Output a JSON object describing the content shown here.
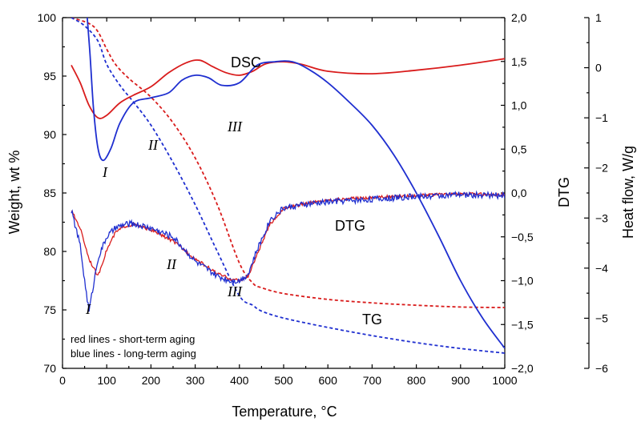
{
  "chart_data": {
    "type": "line",
    "title": "",
    "xlabel": "Temperature, °C",
    "xlim": [
      0,
      1000
    ],
    "x_ticks": [
      "0",
      "100",
      "200",
      "300",
      "400",
      "500",
      "600",
      "700",
      "800",
      "900",
      "1000"
    ],
    "axes": {
      "left": {
        "label": "Weight, wt %",
        "lim": [
          70,
          100
        ],
        "ticks": [
          "70",
          "75",
          "80",
          "85",
          "90",
          "95",
          "100"
        ]
      },
      "right": {
        "label": "DTG",
        "lim": [
          -2.0,
          2.0
        ],
        "ticks": [
          "−2,0",
          "−1,5",
          "−1,0",
          "−0,5",
          "0,0",
          "0,5",
          "1,0",
          "1,5",
          "2,0"
        ]
      },
      "far_right": {
        "label": "Heat flow, W/g",
        "lim": [
          -6,
          1
        ],
        "ticks": [
          "−6",
          "−5",
          "−4",
          "−3",
          "−2",
          "−1",
          "0",
          "1"
        ]
      }
    },
    "grid": false,
    "colors": {
      "short_term": "#d91c1c",
      "long_term": "#1f2fd0"
    },
    "curve_labels": [
      "DSC",
      "DTG",
      "TG"
    ],
    "region_labels": [
      "I",
      "II",
      "III",
      "I",
      "II",
      "III"
    ],
    "notes": [
      "red lines - short-term aging",
      "blue lines - long-term aging"
    ],
    "series": [
      {
        "group": "TG",
        "aging": "short_term",
        "axis": "left",
        "style": "dashed",
        "x": [
          20,
          60,
          80,
          100,
          120,
          150,
          200,
          250,
          300,
          350,
          400,
          430,
          450,
          500,
          600,
          700,
          800,
          900,
          1000
        ],
        "y": [
          100,
          99.5,
          98.8,
          97.3,
          96.0,
          94.8,
          93.2,
          91.0,
          88.0,
          84.0,
          79.0,
          77.3,
          76.9,
          76.4,
          75.9,
          75.6,
          75.4,
          75.25,
          75.2
        ]
      },
      {
        "group": "TG",
        "aging": "long_term",
        "axis": "left",
        "style": "dashed",
        "x": [
          20,
          50,
          80,
          100,
          130,
          160,
          200,
          250,
          300,
          350,
          400,
          430,
          450,
          500,
          600,
          700,
          800,
          900,
          1000
        ],
        "y": [
          100,
          99.3,
          98.0,
          96.0,
          94.2,
          92.8,
          90.8,
          87.6,
          84.0,
          80.0,
          76.2,
          75.4,
          74.9,
          74.3,
          73.5,
          72.8,
          72.2,
          71.7,
          71.3
        ]
      },
      {
        "group": "DSC",
        "aging": "short_term",
        "axis": "far_right",
        "style": "solid",
        "x": [
          20,
          40,
          60,
          80,
          100,
          130,
          160,
          200,
          240,
          280,
          310,
          340,
          370,
          400,
          430,
          460,
          500,
          540,
          600,
          700,
          800,
          900,
          1000
        ],
        "y": [
          0.05,
          -0.3,
          -0.75,
          -1.0,
          -0.95,
          -0.7,
          -0.55,
          -0.38,
          -0.1,
          0.1,
          0.15,
          0.02,
          -0.1,
          -0.15,
          -0.07,
          0.08,
          0.12,
          0.07,
          -0.07,
          -0.12,
          -0.05,
          0.05,
          0.18
        ]
      },
      {
        "group": "DSC",
        "aging": "long_term",
        "axis": "far_right",
        "style": "solid",
        "x": [
          55,
          62,
          70,
          80,
          92,
          110,
          130,
          160,
          200,
          240,
          270,
          300,
          330,
          360,
          400,
          440,
          480,
          520,
          560,
          600,
          650,
          700,
          750,
          800,
          850,
          900,
          950,
          1000
        ],
        "y": [
          1.1,
          0.3,
          -0.8,
          -1.6,
          -1.85,
          -1.6,
          -1.1,
          -0.7,
          -0.6,
          -0.5,
          -0.25,
          -0.15,
          -0.2,
          -0.35,
          -0.3,
          0.05,
          0.12,
          0.12,
          -0.05,
          -0.3,
          -0.7,
          -1.15,
          -1.75,
          -2.5,
          -3.35,
          -4.25,
          -5.0,
          -5.6
        ]
      },
      {
        "group": "DTG",
        "aging": "short_term",
        "axis": "right",
        "style": "solid",
        "x": [
          20,
          40,
          60,
          80,
          100,
          120,
          140,
          160,
          200,
          250,
          300,
          350,
          380,
          400,
          420,
          440,
          470,
          500,
          550,
          600,
          700,
          800,
          900,
          1000
        ],
        "y": [
          -0.2,
          -0.4,
          -0.75,
          -0.95,
          -0.65,
          -0.45,
          -0.38,
          -0.36,
          -0.42,
          -0.55,
          -0.75,
          -0.92,
          -0.98,
          -1.0,
          -0.95,
          -0.7,
          -0.35,
          -0.18,
          -0.12,
          -0.08,
          -0.05,
          -0.03,
          -0.01,
          -0.02
        ]
      },
      {
        "group": "DTG",
        "aging": "long_term",
        "axis": "right",
        "style": "solid",
        "x": [
          20,
          40,
          50,
          60,
          70,
          80,
          100,
          120,
          140,
          160,
          200,
          250,
          300,
          350,
          380,
          400,
          420,
          440,
          470,
          500,
          550,
          600,
          700,
          800,
          900,
          1000
        ],
        "y": [
          -0.2,
          -0.6,
          -1.0,
          -1.35,
          -1.05,
          -0.75,
          -0.5,
          -0.4,
          -0.36,
          -0.35,
          -0.4,
          -0.5,
          -0.78,
          -0.95,
          -1.0,
          -1.0,
          -0.92,
          -0.65,
          -0.3,
          -0.17,
          -0.13,
          -0.1,
          -0.07,
          -0.04,
          -0.02,
          -0.03
        ]
      }
    ]
  }
}
